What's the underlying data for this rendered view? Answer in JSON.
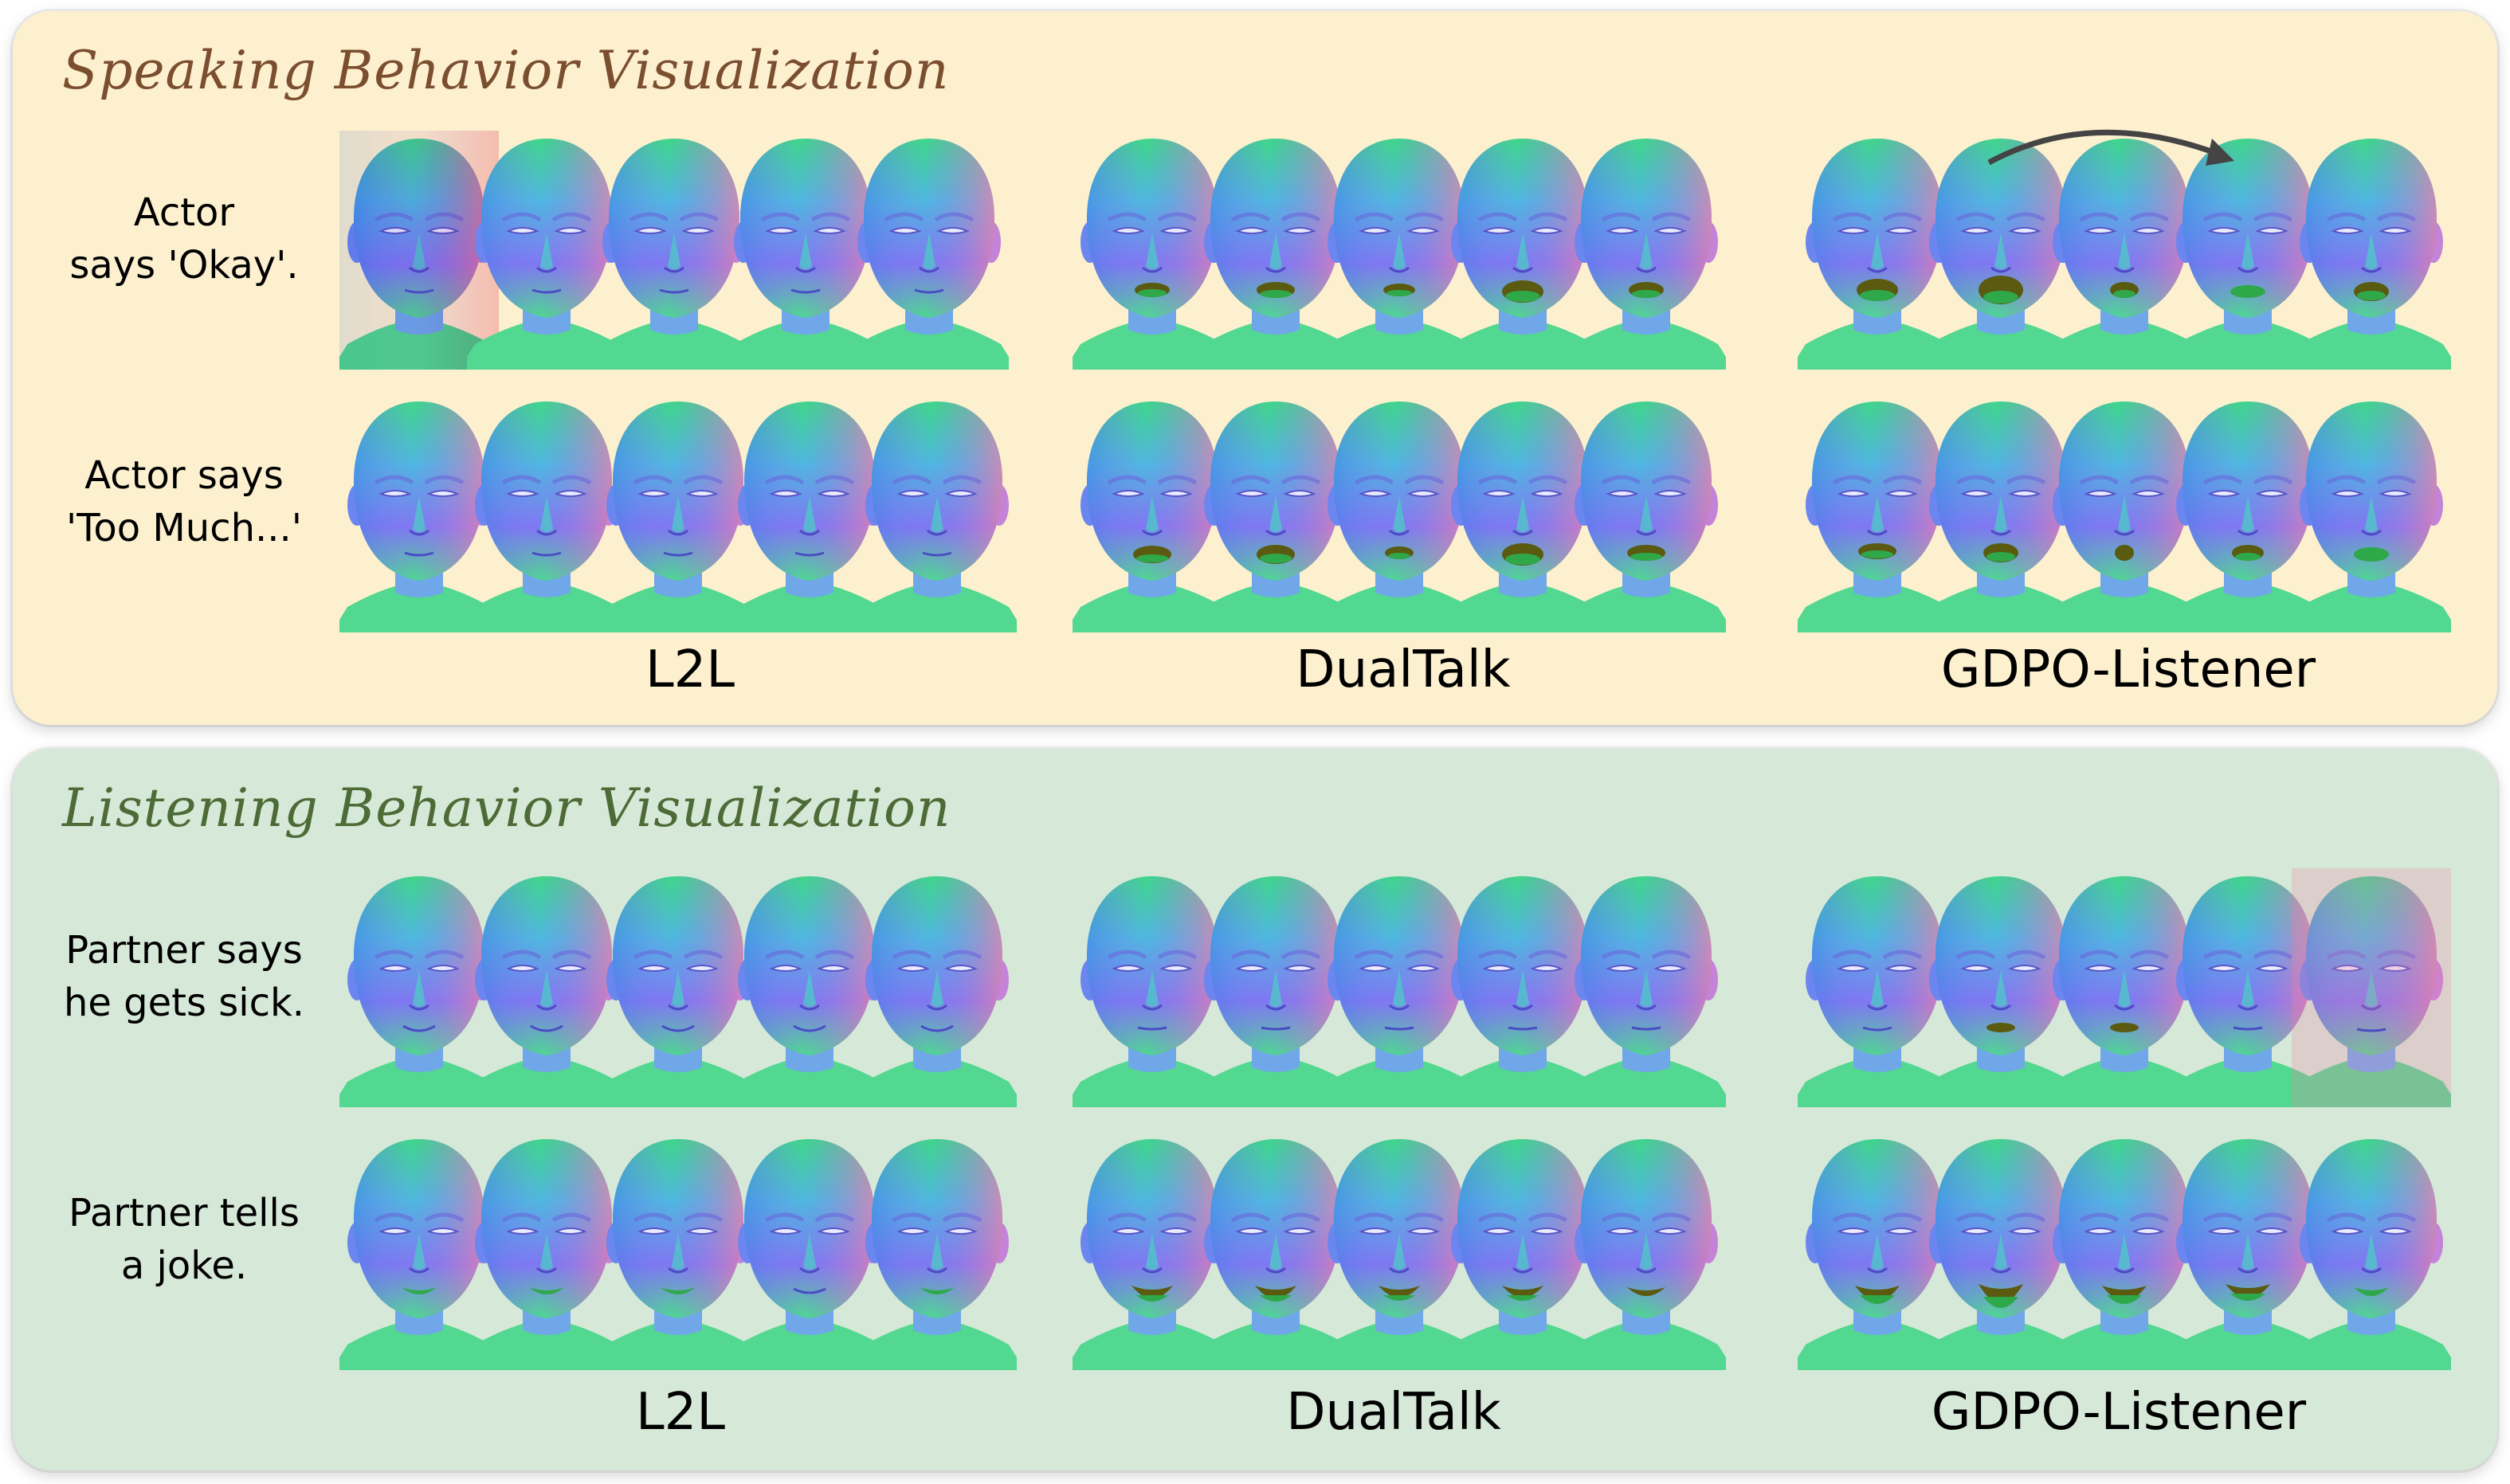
{
  "speaking": {
    "title": "Speaking Behavior Visualization",
    "rows": [
      {
        "label_line1": "Actor",
        "label_line2": "says 'Okay'."
      },
      {
        "label_line1": "Actor says",
        "label_line2": "'Too Much...'"
      }
    ],
    "methods": [
      "L2L",
      "DualTalk",
      "GDPO-Listener"
    ]
  },
  "listening": {
    "title": "Listening Behavior Visualization",
    "rows": [
      {
        "label_line1": "Partner says",
        "label_line2": "he gets sick."
      },
      {
        "label_line1": "Partner tells",
        "label_line2": "a joke."
      }
    ],
    "methods": [
      "L2L",
      "DualTalk",
      "GDPO-Listener"
    ]
  },
  "colors": {
    "speaking_bg": "#fcf0cf",
    "listening_bg": "#d6e8d7",
    "speaking_title": "#7a4e2f",
    "listening_title": "#4c6b36",
    "face_top": "#3fd68a",
    "face_mid": "#7f7cf0",
    "face_warm": "#e07fb0"
  }
}
